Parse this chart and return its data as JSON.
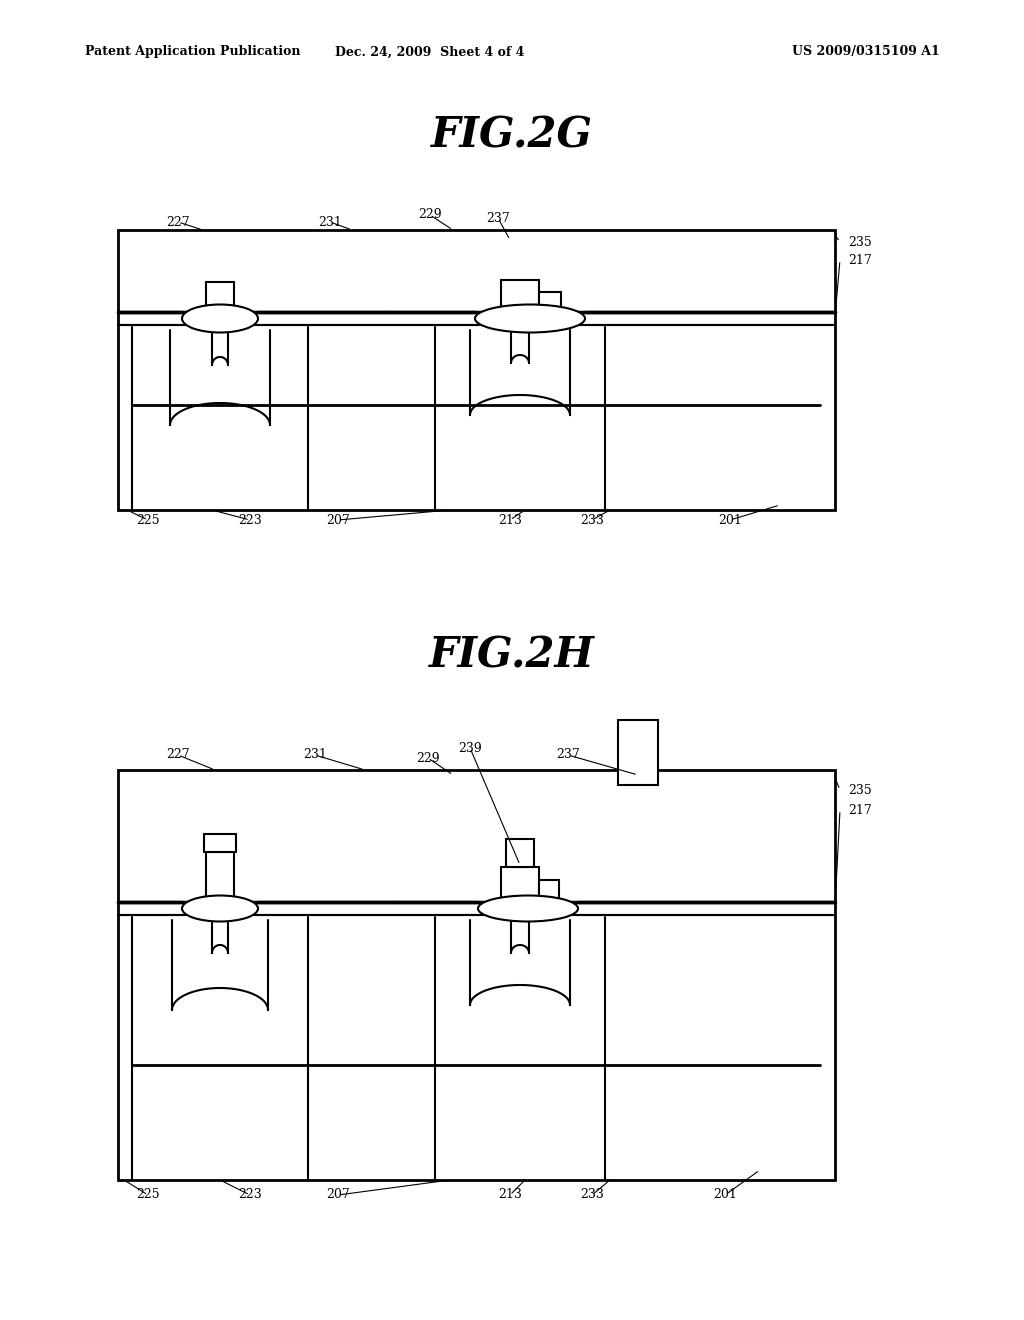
{
  "bg_color": "#ffffff",
  "line_color": "#000000",
  "header_left": "Patent Application Publication",
  "header_center": "Dec. 24, 2009  Sheet 4 of 4",
  "header_right": "US 2009/0315109 A1",
  "fig2g_title": "FIG.2G",
  "fig2h_title": "FIG.2H"
}
